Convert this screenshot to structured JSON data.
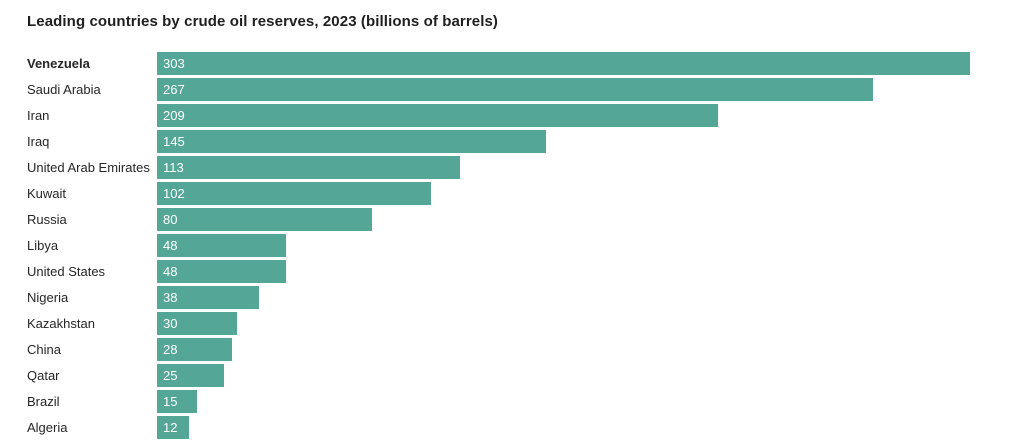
{
  "title": "Leading countries by crude oil reserves, 2023 (billions of barrels)",
  "chart_data": {
    "type": "bar",
    "orientation": "horizontal",
    "title": "Leading countries by crude oil reserves, 2023 (billions of barrels)",
    "xlabel": "",
    "ylabel": "",
    "categories": [
      "Venezuela",
      "Saudi Arabia",
      "Iran",
      "Iraq",
      "United Arab Emirates",
      "Kuwait",
      "Russia",
      "Libya",
      "United States",
      "Nigeria",
      "Kazakhstan",
      "China",
      "Qatar",
      "Brazil",
      "Algeria"
    ],
    "values": [
      303,
      267,
      209,
      145,
      113,
      102,
      80,
      48,
      48,
      38,
      30,
      28,
      25,
      15,
      12
    ],
    "xlim": [
      0,
      303
    ],
    "grid": false,
    "legend": false,
    "value_labels_inside_bars": true,
    "highlighted_category": "Venezuela",
    "colors": {
      "bar": "#54a796",
      "value_label": "#ffffff",
      "category_label": "#262626",
      "title": "#1f1f1f",
      "background": "#ffffff"
    }
  }
}
